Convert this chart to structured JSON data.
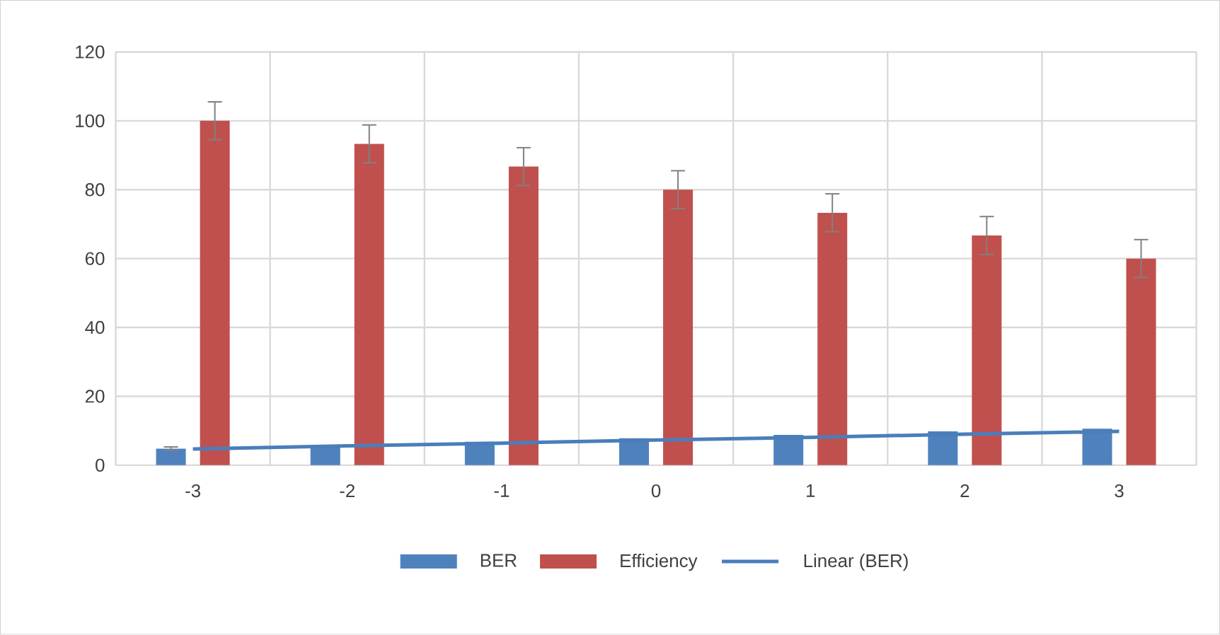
{
  "chart_data": {
    "type": "bar",
    "categories": [
      "-3",
      "-2",
      "-1",
      "0",
      "1",
      "2",
      "3"
    ],
    "series": [
      {
        "name": "BER",
        "color": "#4f81bd",
        "values": [
          4.8,
          5.8,
          6.8,
          7.8,
          8.8,
          9.8,
          10.6
        ],
        "errors": [
          0.5,
          null,
          null,
          null,
          null,
          null,
          null
        ]
      },
      {
        "name": "Efficiency",
        "color": "#c0504d",
        "values": [
          100,
          93.3,
          86.7,
          80,
          73.3,
          66.7,
          60
        ],
        "errors": [
          5.5,
          5.5,
          5.5,
          5.5,
          5.5,
          5.5,
          5.5
        ]
      },
      {
        "name": "Linear (BER)",
        "type": "line",
        "color": "#4a7ebb",
        "values": [
          4.7,
          5.6,
          6.4,
          7.3,
          8.1,
          9.0,
          9.8
        ]
      }
    ],
    "ylim": [
      0,
      120
    ],
    "yticks": [
      0,
      20,
      40,
      60,
      80,
      100,
      120
    ],
    "grid": true,
    "legend": "bottom"
  }
}
